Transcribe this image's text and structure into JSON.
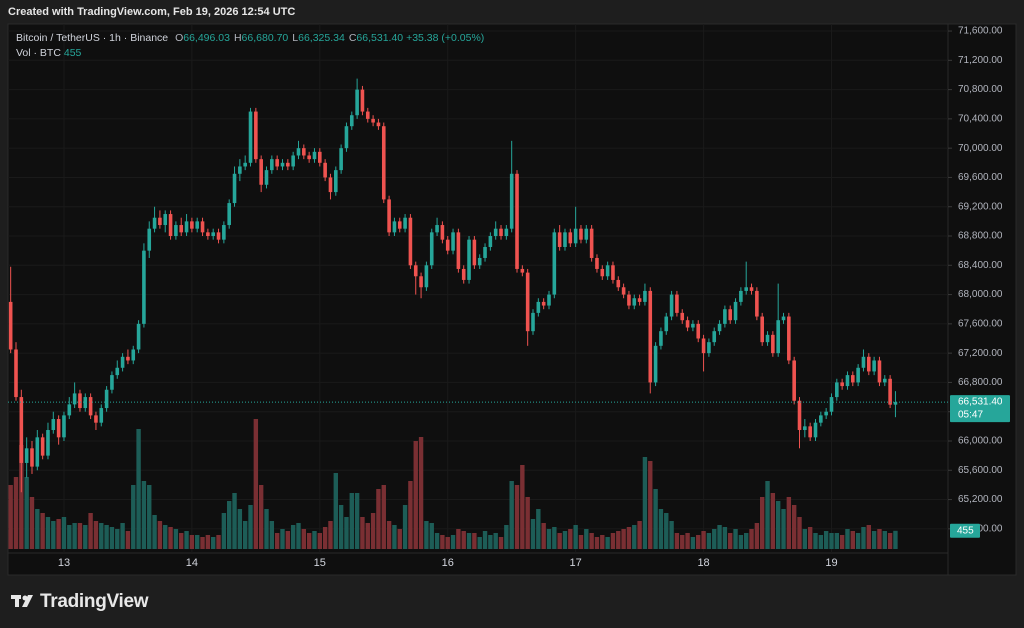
{
  "header": {
    "created": "Created with TradingView.com, Feb 19, 2026 12:54 UTC"
  },
  "brand": "TradingView",
  "chart_data": {
    "type": "candlestick",
    "symbol": "Bitcoin / TetherUS · 1h · Binance",
    "legend": [
      {
        "key": "O",
        "value": "66,496.03"
      },
      {
        "key": "H",
        "value": "66,680.70"
      },
      {
        "key": "L",
        "value": "66,325.34"
      },
      {
        "key": "C",
        "value": "66,531.40"
      }
    ],
    "change": "+35.38 (+0.05%)",
    "volume_title": "Vol · BTC",
    "up_color": "#26a69a",
    "down_color": "#ef5350",
    "volume_up_color": "#1d5d57",
    "volume_down_color": "#7a2f33",
    "grid": true,
    "ylim": [
      64470,
      71696
    ],
    "yticks": [
      {
        "value": 64800,
        "label": "64,800.00"
      },
      {
        "value": 65200,
        "label": "65,200.00"
      },
      {
        "value": 65600,
        "label": "65,600.00"
      },
      {
        "value": 66000,
        "label": "66,000.00"
      },
      {
        "value": 66400,
        "label": "66,400.00"
      },
      {
        "value": 66800,
        "label": "66,800.00"
      },
      {
        "value": 67200,
        "label": "67,200.00"
      },
      {
        "value": 67600,
        "label": "67,600.00"
      },
      {
        "value": 68000,
        "label": "68,000.00"
      },
      {
        "value": 68400,
        "label": "68,400.00"
      },
      {
        "value": 68800,
        "label": "68,800.00"
      },
      {
        "value": 69200,
        "label": "69,200.00"
      },
      {
        "value": 69600,
        "label": "69,600.00"
      },
      {
        "value": 70000,
        "label": "70,000.00"
      },
      {
        "value": 70400,
        "label": "70,400.00"
      },
      {
        "value": 70800,
        "label": "70,800.00"
      },
      {
        "value": 71200,
        "label": "71,200.00"
      },
      {
        "value": 71600,
        "label": "71,600.00"
      }
    ],
    "last_price": {
      "value": 66531.4,
      "label": "66,531.40"
    },
    "countdown": "05:47",
    "categories": [
      null,
      null,
      null,
      null,
      null,
      null,
      null,
      null,
      null,
      null,
      "13",
      null,
      null,
      null,
      null,
      null,
      null,
      null,
      null,
      null,
      null,
      null,
      null,
      null,
      null,
      null,
      null,
      null,
      null,
      null,
      null,
      null,
      null,
      null,
      "14",
      null,
      null,
      null,
      null,
      null,
      null,
      null,
      null,
      null,
      null,
      null,
      null,
      null,
      null,
      null,
      null,
      null,
      null,
      null,
      null,
      null,
      null,
      null,
      "15",
      null,
      null,
      null,
      null,
      null,
      null,
      null,
      null,
      null,
      null,
      null,
      null,
      null,
      null,
      null,
      null,
      null,
      null,
      null,
      null,
      null,
      null,
      null,
      "16",
      null,
      null,
      null,
      null,
      null,
      null,
      null,
      null,
      null,
      null,
      null,
      null,
      null,
      null,
      null,
      null,
      null,
      null,
      null,
      null,
      null,
      null,
      null,
      "17",
      null,
      null,
      null,
      null,
      null,
      null,
      null,
      null,
      null,
      null,
      null,
      null,
      null,
      null,
      null,
      null,
      null,
      null,
      null,
      null,
      null,
      null,
      null,
      "18",
      null,
      null,
      null,
      null,
      null,
      null,
      null,
      null,
      null,
      null,
      null,
      null,
      null,
      null,
      null,
      null,
      null,
      null,
      null,
      null,
      null,
      null,
      null,
      "19",
      null,
      null,
      null,
      null,
      null,
      null,
      null,
      null,
      null,
      null,
      null,
      null
    ],
    "candles": [
      [
        67900,
        68380,
        67200,
        67250
      ],
      [
        67250,
        67350,
        66550,
        66600
      ],
      [
        66600,
        66700,
        65300,
        65700
      ],
      [
        65700,
        66050,
        65500,
        65900
      ],
      [
        65900,
        66000,
        65550,
        65650
      ],
      [
        65650,
        66150,
        65600,
        66050
      ],
      [
        66050,
        66100,
        65750,
        65800
      ],
      [
        65800,
        66250,
        65750,
        66150
      ],
      [
        66150,
        66400,
        66100,
        66300
      ],
      [
        66300,
        66350,
        65950,
        66050
      ],
      [
        66050,
        66400,
        66000,
        66350
      ],
      [
        66350,
        66600,
        66300,
        66500
      ],
      [
        66500,
        66800,
        66450,
        66650
      ],
      [
        66650,
        66700,
        66400,
        66450
      ],
      [
        66450,
        66650,
        66400,
        66600
      ],
      [
        66600,
        66650,
        66300,
        66350
      ],
      [
        66350,
        66400,
        66150,
        66250
      ],
      [
        66250,
        66500,
        66200,
        66450
      ],
      [
        66450,
        66750,
        66400,
        66700
      ],
      [
        66700,
        66950,
        66650,
        66900
      ],
      [
        66900,
        67100,
        66850,
        67000
      ],
      [
        67000,
        67200,
        66950,
        67150
      ],
      [
        67150,
        67250,
        67050,
        67100
      ],
      [
        67100,
        67300,
        67050,
        67250
      ],
      [
        67250,
        67650,
        67200,
        67600
      ],
      [
        67600,
        68700,
        67550,
        68600
      ],
      [
        68600,
        69000,
        68500,
        68900
      ],
      [
        68900,
        69200,
        68850,
        69050
      ],
      [
        69050,
        69150,
        68900,
        68950
      ],
      [
        68950,
        69150,
        68850,
        69100
      ],
      [
        69100,
        69150,
        68750,
        68800
      ],
      [
        68800,
        69000,
        68750,
        68950
      ],
      [
        68950,
        69050,
        68800,
        68850
      ],
      [
        68850,
        69100,
        68800,
        69000
      ],
      [
        69000,
        69050,
        68850,
        68900
      ],
      [
        68900,
        69050,
        68850,
        69000
      ],
      [
        69000,
        69050,
        68800,
        68850
      ],
      [
        68850,
        68900,
        68750,
        68800
      ],
      [
        68800,
        68900,
        68750,
        68850
      ],
      [
        68850,
        68900,
        68700,
        68750
      ],
      [
        68750,
        69000,
        68700,
        68950
      ],
      [
        68950,
        69300,
        68900,
        69250
      ],
      [
        69250,
        69750,
        69200,
        69650
      ],
      [
        69650,
        69850,
        69550,
        69750
      ],
      [
        69750,
        69900,
        69700,
        69800
      ],
      [
        69800,
        70550,
        69750,
        70500
      ],
      [
        70500,
        70550,
        69800,
        69850
      ],
      [
        69850,
        69900,
        69400,
        69500
      ],
      [
        69500,
        69750,
        69450,
        69700
      ],
      [
        69700,
        69900,
        69650,
        69850
      ],
      [
        69850,
        69900,
        69700,
        69750
      ],
      [
        69750,
        69850,
        69700,
        69800
      ],
      [
        69800,
        69850,
        69700,
        69750
      ],
      [
        69750,
        69950,
        69700,
        69900
      ],
      [
        69900,
        70100,
        69850,
        70000
      ],
      [
        70000,
        70050,
        69850,
        69900
      ],
      [
        69900,
        69950,
        69800,
        69850
      ],
      [
        69850,
        70000,
        69800,
        69950
      ],
      [
        69950,
        70000,
        69750,
        69800
      ],
      [
        69800,
        69850,
        69550,
        69600
      ],
      [
        69600,
        69650,
        69300,
        69400
      ],
      [
        69400,
        69750,
        69350,
        69700
      ],
      [
        69700,
        70050,
        69650,
        70000
      ],
      [
        70000,
        70350,
        69950,
        70300
      ],
      [
        70300,
        70500,
        70250,
        70450
      ],
      [
        70450,
        70950,
        70400,
        70800
      ],
      [
        70800,
        70850,
        70450,
        70500
      ],
      [
        70500,
        70550,
        70350,
        70400
      ],
      [
        70400,
        70450,
        70300,
        70350
      ],
      [
        70350,
        70400,
        70250,
        70300
      ],
      [
        70300,
        70350,
        69250,
        69300
      ],
      [
        69300,
        69350,
        68800,
        68850
      ],
      [
        68850,
        69050,
        68800,
        69000
      ],
      [
        69000,
        69050,
        68850,
        68900
      ],
      [
        68900,
        69100,
        68850,
        69050
      ],
      [
        69050,
        69100,
        68350,
        68400
      ],
      [
        68400,
        68450,
        68000,
        68250
      ],
      [
        68250,
        68300,
        67950,
        68100
      ],
      [
        68100,
        68450,
        68050,
        68400
      ],
      [
        68400,
        68900,
        68350,
        68850
      ],
      [
        68850,
        69050,
        68800,
        68950
      ],
      [
        68950,
        69000,
        68700,
        68750
      ],
      [
        68750,
        68800,
        68550,
        68600
      ],
      [
        68600,
        68900,
        68550,
        68850
      ],
      [
        68850,
        68900,
        68300,
        68350
      ],
      [
        68350,
        68400,
        68150,
        68200
      ],
      [
        68200,
        68800,
        68150,
        68750
      ],
      [
        68750,
        68800,
        68350,
        68400
      ],
      [
        68400,
        68550,
        68350,
        68500
      ],
      [
        68500,
        68700,
        68450,
        68650
      ],
      [
        68650,
        68850,
        68600,
        68800
      ],
      [
        68800,
        69000,
        68750,
        68900
      ],
      [
        68900,
        68950,
        68750,
        68800
      ],
      [
        68800,
        68950,
        68750,
        68900
      ],
      [
        68900,
        70100,
        68850,
        69650
      ],
      [
        69650,
        69700,
        68300,
        68350
      ],
      [
        68350,
        68400,
        68250,
        68300
      ],
      [
        68300,
        68350,
        67300,
        67500
      ],
      [
        67500,
        67800,
        67450,
        67750
      ],
      [
        67750,
        67950,
        67700,
        67900
      ],
      [
        67900,
        67950,
        67800,
        67850
      ],
      [
        67850,
        68050,
        67800,
        68000
      ],
      [
        68000,
        68900,
        67950,
        68850
      ],
      [
        68850,
        68950,
        68600,
        68650
      ],
      [
        68650,
        68900,
        68600,
        68850
      ],
      [
        68850,
        68900,
        68650,
        68700
      ],
      [
        68700,
        69200,
        68650,
        68900
      ],
      [
        68900,
        68950,
        68700,
        68750
      ],
      [
        68750,
        68950,
        68700,
        68900
      ],
      [
        68900,
        68950,
        68450,
        68500
      ],
      [
        68500,
        68550,
        68300,
        68350
      ],
      [
        68350,
        68400,
        68200,
        68250
      ],
      [
        68250,
        68450,
        68200,
        68400
      ],
      [
        68400,
        68450,
        68150,
        68200
      ],
      [
        68200,
        68250,
        68050,
        68100
      ],
      [
        68100,
        68150,
        67950,
        68000
      ],
      [
        68000,
        68050,
        67800,
        67850
      ],
      [
        67850,
        68000,
        67800,
        67950
      ],
      [
        67950,
        68000,
        67850,
        67900
      ],
      [
        67900,
        68150,
        67850,
        68050
      ],
      [
        68050,
        68100,
        66650,
        66800
      ],
      [
        66800,
        67350,
        66750,
        67300
      ],
      [
        67300,
        67550,
        67250,
        67500
      ],
      [
        67500,
        67750,
        67450,
        67700
      ],
      [
        67700,
        68050,
        67650,
        68000
      ],
      [
        68000,
        68050,
        67700,
        67750
      ],
      [
        67750,
        67800,
        67600,
        67650
      ],
      [
        67650,
        67700,
        67500,
        67550
      ],
      [
        67550,
        67650,
        67500,
        67600
      ],
      [
        67600,
        67650,
        67350,
        67400
      ],
      [
        67400,
        67450,
        66950,
        67200
      ],
      [
        67200,
        67400,
        67150,
        67350
      ],
      [
        67350,
        67550,
        67300,
        67500
      ],
      [
        67500,
        67650,
        67450,
        67600
      ],
      [
        67600,
        67850,
        67550,
        67800
      ],
      [
        67800,
        67850,
        67600,
        67650
      ],
      [
        67650,
        67950,
        67600,
        67900
      ],
      [
        67900,
        68100,
        67850,
        68050
      ],
      [
        68050,
        68450,
        68000,
        68100
      ],
      [
        68100,
        68150,
        68000,
        68050
      ],
      [
        68050,
        68100,
        67650,
        67700
      ],
      [
        67700,
        67750,
        67300,
        67350
      ],
      [
        67350,
        67500,
        67300,
        67450
      ],
      [
        67450,
        67500,
        67150,
        67200
      ],
      [
        67200,
        68150,
        67150,
        67650
      ],
      [
        67650,
        67750,
        67600,
        67700
      ],
      [
        67700,
        67750,
        67050,
        67100
      ],
      [
        67100,
        67150,
        66500,
        66550
      ],
      [
        66550,
        66600,
        65900,
        66150
      ],
      [
        66150,
        66300,
        66050,
        66200
      ],
      [
        66200,
        66250,
        66000,
        66050
      ],
      [
        66050,
        66300,
        66000,
        66250
      ],
      [
        66250,
        66400,
        66200,
        66350
      ],
      [
        66350,
        66450,
        66300,
        66400
      ],
      [
        66400,
        66650,
        66350,
        66600
      ],
      [
        66600,
        66850,
        66550,
        66800
      ],
      [
        66800,
        66850,
        66700,
        66750
      ],
      [
        66750,
        66950,
        66700,
        66900
      ],
      [
        66900,
        66950,
        66750,
        66800
      ],
      [
        66800,
        67050,
        66750,
        67000
      ],
      [
        67000,
        67250,
        66950,
        67150
      ],
      [
        67150,
        67200,
        66900,
        66950
      ],
      [
        66950,
        67150,
        66900,
        67100
      ],
      [
        67100,
        67150,
        66750,
        66800
      ],
      [
        66800,
        66900,
        66750,
        66850
      ],
      [
        66850,
        66900,
        66450,
        66496.03
      ],
      [
        66496.03,
        66680.7,
        66325.34,
        66531.4
      ]
    ],
    "volume": [
      1600,
      1800,
      2600,
      1800,
      1300,
      1000,
      900,
      800,
      700,
      750,
      800,
      600,
      650,
      650,
      600,
      900,
      700,
      650,
      600,
      550,
      500,
      650,
      450,
      1600,
      3000,
      1700,
      1600,
      850,
      700,
      600,
      550,
      500,
      400,
      450,
      350,
      350,
      300,
      350,
      300,
      350,
      900,
      1200,
      1400,
      1000,
      700,
      1100,
      3250,
      1600,
      1000,
      700,
      400,
      500,
      450,
      600,
      650,
      500,
      400,
      450,
      400,
      550,
      700,
      1900,
      1100,
      800,
      1400,
      1400,
      800,
      650,
      900,
      1500,
      1600,
      700,
      600,
      500,
      1100,
      1700,
      2700,
      2800,
      700,
      650,
      400,
      350,
      300,
      350,
      500,
      450,
      400,
      400,
      300,
      450,
      350,
      400,
      300,
      600,
      1700,
      1600,
      2100,
      1300,
      750,
      1000,
      650,
      500,
      550,
      400,
      450,
      500,
      600,
      350,
      500,
      400,
      300,
      350,
      300,
      400,
      450,
      500,
      550,
      600,
      700,
      2300,
      2200,
      1500,
      1000,
      900,
      700,
      400,
      350,
      400,
      300,
      350,
      450,
      400,
      500,
      600,
      550,
      400,
      500,
      350,
      400,
      500,
      650,
      1300,
      1700,
      1400,
      1200,
      1000,
      1300,
      1100,
      800,
      500,
      550,
      400,
      350,
      450,
      400,
      400,
      350,
      500,
      450,
      400,
      550,
      600,
      450,
      500,
      450,
      400,
      455
    ]
  }
}
